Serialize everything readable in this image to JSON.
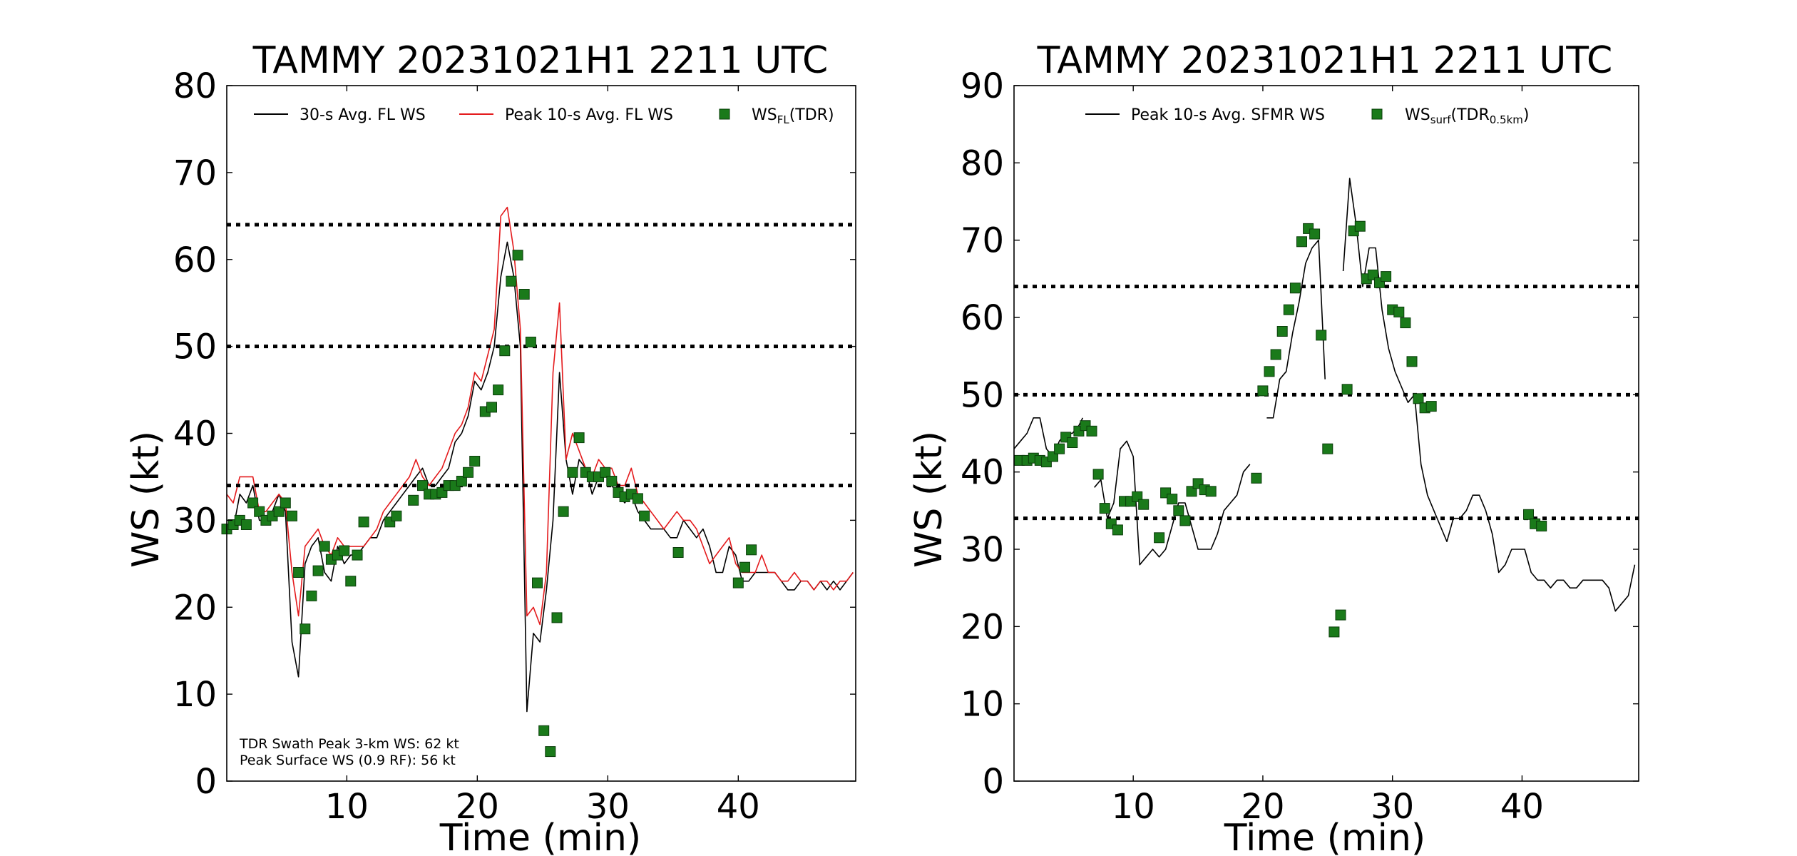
{
  "chart_data": [
    {
      "type": "line",
      "title": "TAMMY 20231021H1 2211 UTC",
      "xlabel": "Time (min)",
      "ylabel": "WS (kt)",
      "xlim": [
        0.8,
        49.0
      ],
      "ylim": [
        0,
        80
      ],
      "xticks": [
        10,
        20,
        30,
        40
      ],
      "yticks": [
        0,
        10,
        20,
        30,
        40,
        50,
        60,
        70,
        80
      ],
      "reference_lines": [
        34,
        50,
        64
      ],
      "legend_position": "top",
      "annotations": [
        "TDR Swath Peak 3-km WS: 62 kt",
        "Peak Surface WS (0.9 RF): 56 kt"
      ],
      "series": [
        {
          "name": "30-s Avg. FL WS",
          "kind": "line",
          "color": "#000000",
          "x": [
            0.8,
            1.3,
            1.8,
            2.3,
            2.8,
            3.3,
            3.8,
            4.3,
            4.8,
            5.3,
            5.8,
            6.3,
            6.8,
            7.3,
            7.8,
            8.3,
            8.8,
            9.3,
            9.8,
            10.3,
            10.8,
            11.3,
            11.8,
            12.3,
            12.8,
            13.3,
            13.8,
            14.3,
            14.8,
            15.3,
            15.8,
            16.3,
            16.8,
            17.3,
            17.8,
            18.3,
            18.8,
            19.3,
            19.8,
            20.3,
            20.8,
            21.3,
            21.8,
            22.3,
            22.8,
            23.3,
            23.8,
            24.3,
            24.8,
            25.3,
            25.8,
            26.3,
            26.8,
            27.3,
            27.8,
            28.3,
            28.8,
            29.3,
            29.8,
            30.3,
            30.8,
            31.3,
            31.8,
            32.3,
            32.8,
            33.3,
            33.8,
            34.3,
            34.8,
            35.3,
            35.8,
            36.3,
            36.8,
            37.3,
            37.8,
            38.3,
            38.8,
            39.3,
            39.8,
            40.3,
            40.8,
            41.3,
            41.8,
            42.3,
            42.8,
            43.3,
            43.8,
            44.3,
            44.8,
            45.3,
            45.8,
            46.3,
            46.8,
            47.3,
            47.8,
            48.3,
            48.8
          ],
          "y": [
            29,
            29,
            33,
            32,
            34,
            30,
            30,
            31,
            33,
            31,
            16,
            12,
            25,
            27,
            28,
            24,
            23,
            27,
            25,
            26,
            26,
            27,
            28,
            28,
            30,
            31,
            32,
            33,
            34,
            35,
            36,
            34,
            34,
            35,
            36,
            39,
            40,
            42,
            46,
            45,
            47,
            50,
            58,
            62,
            58,
            50,
            8,
            17,
            16,
            22,
            30,
            47,
            37,
            33,
            37,
            36,
            33,
            35,
            36,
            34,
            33,
            32,
            33,
            31,
            30,
            29,
            29,
            29,
            28,
            28,
            30,
            29,
            28,
            29,
            27,
            24,
            24,
            27,
            26,
            23,
            23,
            24,
            24,
            24,
            24,
            23,
            22,
            22,
            23,
            23,
            22,
            23,
            22,
            23,
            22,
            23,
            24
          ]
        },
        {
          "name": "Peak 10-s Avg. FL WS",
          "kind": "line",
          "color": "#e41a1c",
          "x": [
            0.8,
            1.3,
            1.8,
            2.3,
            2.8,
            3.3,
            3.8,
            4.3,
            4.8,
            5.3,
            5.8,
            6.3,
            6.8,
            7.3,
            7.8,
            8.3,
            8.8,
            9.3,
            9.8,
            10.3,
            10.8,
            11.3,
            11.8,
            12.3,
            12.8,
            13.3,
            13.8,
            14.3,
            14.8,
            15.3,
            15.8,
            16.3,
            16.8,
            17.3,
            17.8,
            18.3,
            18.8,
            19.3,
            19.8,
            20.3,
            20.8,
            21.3,
            21.8,
            22.3,
            22.8,
            23.3,
            23.8,
            24.3,
            24.8,
            25.3,
            25.8,
            26.3,
            26.8,
            27.3,
            27.8,
            28.3,
            28.8,
            29.3,
            29.8,
            30.3,
            30.8,
            31.3,
            31.8,
            32.3,
            32.8,
            33.3,
            33.8,
            34.3,
            34.8,
            35.3,
            35.8,
            36.3,
            36.8,
            37.3,
            37.8,
            38.3,
            38.8,
            39.3,
            39.8,
            40.3,
            40.8,
            41.3,
            41.8,
            42.3,
            42.8,
            43.3,
            43.8,
            44.3,
            44.8,
            45.3,
            45.8,
            46.3,
            46.8,
            47.3,
            47.8,
            48.3,
            48.8
          ],
          "y": [
            33,
            32,
            35,
            35,
            35,
            31,
            31,
            32,
            33,
            32,
            24,
            19,
            27,
            28,
            29,
            27,
            26,
            28,
            27,
            27,
            27,
            27,
            28,
            29,
            31,
            32,
            33,
            34,
            35,
            37,
            35,
            34,
            35,
            36,
            38,
            40,
            41,
            43,
            47,
            46,
            49,
            52,
            65,
            66,
            61,
            52,
            19,
            20,
            18,
            24,
            47,
            55,
            37,
            40,
            38,
            36,
            35,
            37,
            36,
            36,
            34,
            34,
            36,
            33,
            32,
            31,
            30,
            29,
            30,
            31,
            30,
            30,
            29,
            27,
            25,
            26,
            27,
            28,
            25,
            24,
            24,
            24,
            26,
            24,
            24,
            23,
            23,
            24,
            23,
            23,
            22,
            23,
            23,
            22,
            23,
            23,
            24
          ]
        },
        {
          "name": "WS_FL(TDR)",
          "kind": "scatter",
          "color": "#1a7a1a",
          "x": [
            0.8,
            1.3,
            1.8,
            2.3,
            2.8,
            3.3,
            3.8,
            4.3,
            4.8,
            5.3,
            5.8,
            6.3,
            6.8,
            7.3,
            7.8,
            8.3,
            8.8,
            9.3,
            9.8,
            10.3,
            10.8,
            11.3,
            13.3,
            13.8,
            15.1,
            15.8,
            16.3,
            16.8,
            17.3,
            17.8,
            18.3,
            18.8,
            19.3,
            19.8,
            20.6,
            21.1,
            21.6,
            22.1,
            22.6,
            23.1,
            23.6,
            24.1,
            24.6,
            25.1,
            25.6,
            26.1,
            26.6,
            27.3,
            27.8,
            28.3,
            28.8,
            29.3,
            29.8,
            30.3,
            30.8,
            31.3,
            31.8,
            32.3,
            32.8,
            35.4,
            40.0,
            40.5,
            41.0
          ],
          "y": [
            29,
            29.5,
            30,
            29.5,
            32,
            31,
            30,
            30.5,
            31,
            32,
            30.5,
            24,
            17.5,
            21.3,
            24.2,
            27,
            25.5,
            26,
            26.5,
            23,
            26,
            29.8,
            29.8,
            30.5,
            32.3,
            34,
            33,
            33,
            33.2,
            34,
            34,
            34.5,
            35.5,
            36.8,
            42.5,
            43,
            45,
            49.5,
            57.5,
            60.5,
            56,
            50.5,
            22.8,
            5.8,
            3.4,
            18.8,
            31,
            35.5,
            39.5,
            35.5,
            35,
            35,
            35.5,
            34.5,
            33.2,
            32.7,
            33,
            32.5,
            30.5,
            26.3,
            22.8,
            24.6,
            26.6
          ]
        }
      ]
    },
    {
      "type": "line",
      "title": "TAMMY 20231021H1 2211 UTC",
      "xlabel": "Time (min)",
      "ylabel": "WS (kt)",
      "xlim": [
        0.8,
        49.0
      ],
      "ylim": [
        0,
        90
      ],
      "xticks": [
        10,
        20,
        30,
        40
      ],
      "yticks": [
        0,
        10,
        20,
        30,
        40,
        50,
        60,
        70,
        80,
        90
      ],
      "reference_lines": [
        34,
        50,
        64
      ],
      "legend_position": "top",
      "series": [
        {
          "name": "Peak 10-s Avg. SFMR WS",
          "kind": "line",
          "color": "#000000",
          "segments": [
            {
              "x": [
                0.8,
                1.3,
                1.8,
                2.3,
                2.8,
                3.3,
                3.8,
                4.3,
                4.8,
                5.3,
                5.8,
                6.1
              ],
              "y": [
                43,
                44,
                45,
                47,
                47,
                43,
                42,
                44,
                45,
                45,
                46,
                47
              ]
            },
            {
              "x": [
                7.0,
                7.5,
                8.0,
                8.5,
                9.0,
                9.5,
                10.0,
                10.5,
                11.0,
                11.5,
                12.0,
                12.5,
                13.0,
                13.5,
                14.0,
                14.5,
                15.0,
                15.5,
                16.0,
                16.5,
                17.0,
                17.5,
                18.0,
                18.5,
                19.0
              ],
              "y": [
                38,
                39,
                34,
                36,
                43,
                44,
                42,
                28,
                29,
                30,
                29,
                30,
                33,
                36,
                36,
                33,
                30,
                30,
                30,
                32,
                35,
                36,
                37,
                40,
                41
              ]
            },
            {
              "x": [
                20.3,
                20.8,
                21.3,
                21.8,
                22.3,
                22.8,
                23.3,
                23.8,
                24.3,
                24.8
              ],
              "y": [
                47,
                47,
                52,
                53,
                58,
                62,
                67,
                69,
                70,
                52
              ]
            },
            {
              "x": [
                26.2,
                26.7,
                27.2,
                27.7,
                28.2,
                28.7,
                29.2,
                29.7,
                30.2,
                30.7,
                31.2,
                31.7,
                32.2,
                32.7,
                33.2,
                33.7,
                34.2,
                34.7,
                35.2,
                35.7,
                36.2,
                36.7,
                37.2,
                37.7,
                38.2,
                38.7,
                39.2,
                39.7,
                40.2,
                40.7,
                41.2,
                41.7,
                42.2,
                42.7,
                43.2,
                43.7,
                44.2,
                44.7,
                45.2,
                45.7,
                46.2,
                46.7,
                47.2,
                47.7,
                48.2,
                48.7
              ],
              "y": [
                66,
                78,
                72,
                64,
                69,
                69,
                61,
                56,
                53,
                51,
                49,
                50,
                41,
                37,
                35,
                33,
                31,
                34,
                34,
                35,
                37,
                37,
                35,
                32,
                27,
                28,
                30,
                30,
                30,
                27,
                26,
                26,
                25,
                26,
                26,
                25,
                25,
                26,
                26,
                26,
                26,
                25,
                22,
                23,
                24,
                28
              ]
            }
          ]
        },
        {
          "name": "WS_surf(TDR_0.5km)",
          "kind": "scatter",
          "color": "#1a7a1a",
          "x": [
            1.2,
            1.8,
            2.3,
            2.8,
            3.3,
            3.8,
            4.3,
            4.8,
            5.3,
            5.8,
            6.3,
            6.8,
            7.3,
            7.8,
            8.3,
            8.8,
            9.3,
            9.8,
            10.3,
            10.8,
            12.0,
            12.5,
            13.0,
            13.5,
            14.0,
            14.5,
            15.0,
            15.5,
            16.0,
            19.5,
            20.0,
            20.5,
            21.0,
            21.5,
            22.0,
            22.5,
            23.0,
            23.5,
            24.0,
            24.5,
            25.0,
            25.5,
            26.0,
            26.5,
            27.0,
            27.5,
            28.0,
            28.5,
            29.0,
            29.5,
            30.0,
            30.5,
            31.0,
            31.5,
            32.0,
            32.5,
            33.0,
            40.5,
            41.0,
            41.5
          ],
          "y": [
            41.5,
            41.5,
            41.8,
            41.5,
            41.3,
            42,
            43,
            44.5,
            43.8,
            45.3,
            46,
            45.3,
            39.7,
            35.3,
            33.3,
            32.5,
            36.2,
            36.2,
            36.8,
            35.8,
            31.5,
            37.3,
            36.5,
            35,
            33.7,
            37.5,
            38.5,
            37.7,
            37.5,
            39.2,
            50.5,
            53,
            55.2,
            58.2,
            61,
            63.8,
            69.8,
            71.5,
            70.8,
            57.7,
            43,
            19.3,
            21.5,
            50.7,
            71.2,
            71.8,
            65,
            65.5,
            64.5,
            65.3,
            61,
            60.7,
            59.3,
            54.3,
            49.5,
            48.3,
            48.5,
            34.5,
            33.3,
            33
          ]
        }
      ]
    }
  ],
  "legend_labels": {
    "left": {
      "line1": "30-s Avg. FL WS",
      "line2": "Peak 10-s Avg. FL WS",
      "marker_main": "WS",
      "marker_sub": "FL",
      "marker_tail": "(TDR)"
    },
    "right": {
      "line1": "Peak 10-s Avg. SFMR WS",
      "marker_main": "WS",
      "marker_sub": "surf",
      "marker_mid": "(TDR",
      "marker_sub2": "0.5km",
      "marker_tail": ")"
    }
  }
}
